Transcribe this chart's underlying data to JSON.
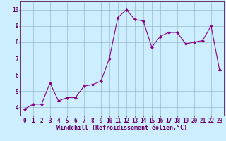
{
  "x": [
    0,
    1,
    2,
    3,
    4,
    5,
    6,
    7,
    8,
    9,
    10,
    11,
    12,
    13,
    14,
    15,
    16,
    17,
    18,
    19,
    20,
    21,
    22,
    23
  ],
  "y": [
    3.9,
    4.2,
    4.2,
    5.5,
    4.4,
    4.6,
    4.6,
    5.3,
    5.4,
    5.6,
    7.0,
    9.5,
    10.0,
    9.4,
    9.3,
    7.7,
    8.35,
    8.6,
    8.6,
    7.9,
    8.0,
    8.1,
    9.0,
    6.3
  ],
  "xlabel": "Windchill (Refroidissement éolien,°C)",
  "xlim": [
    -0.5,
    23.5
  ],
  "ylim": [
    3.5,
    10.5
  ],
  "yticks": [
    4,
    5,
    6,
    7,
    8,
    9,
    10
  ],
  "xticks": [
    0,
    1,
    2,
    3,
    4,
    5,
    6,
    7,
    8,
    9,
    10,
    11,
    12,
    13,
    14,
    15,
    16,
    17,
    18,
    19,
    20,
    21,
    22,
    23
  ],
  "line_color": "#880088",
  "marker": "D",
  "marker_size": 2.0,
  "bg_color": "#cceeff",
  "grid_color": "#99bbcc",
  "spine_color": "#663366",
  "tick_label_color": "#660066",
  "xlabel_fontsize": 6.0,
  "tick_fontsize": 5.5
}
